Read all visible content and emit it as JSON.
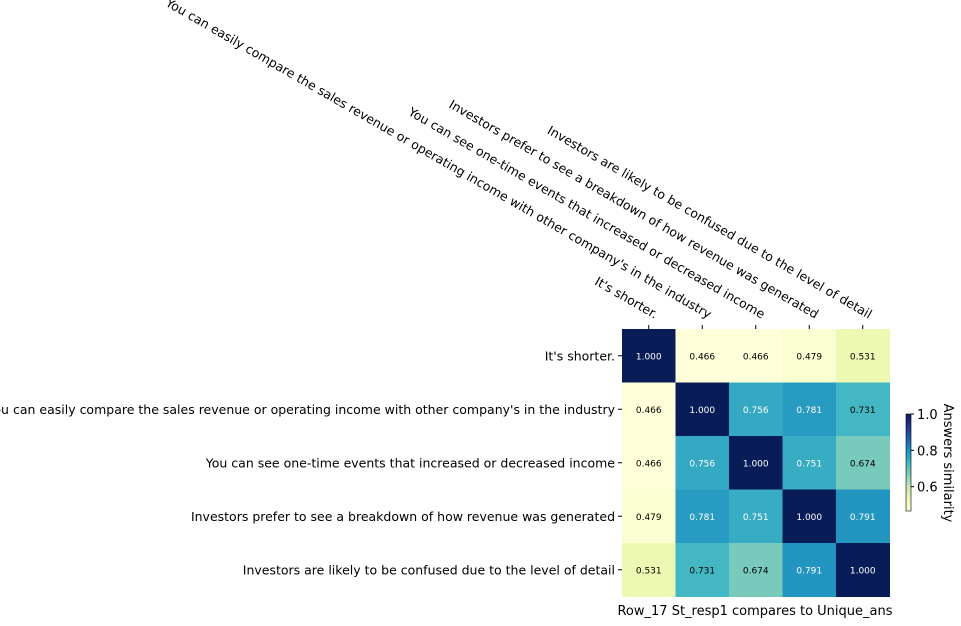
{
  "chart_data": {
    "type": "heatmap",
    "title": "",
    "xlabel": "Row_17 St_resp1 compares to Unique_ans",
    "ylabel": "",
    "labels": [
      "It's shorter.",
      "You can easily compare the sales revenue or operating income with other company's in the industry",
      "You can see one-time events that increased or decreased income",
      "Investors prefer to see a breakdown of how revenue was generated",
      "Investors are likely to be confused due to the level of detail"
    ],
    "values": [
      [
        1.0,
        0.466,
        0.466,
        0.479,
        0.531
      ],
      [
        0.466,
        1.0,
        0.756,
        0.781,
        0.731
      ],
      [
        0.466,
        0.756,
        1.0,
        0.751,
        0.674
      ],
      [
        0.479,
        0.781,
        0.751,
        1.0,
        0.791
      ],
      [
        0.531,
        0.731,
        0.674,
        0.791,
        1.0
      ]
    ],
    "colorbar": {
      "label": "Answers similarity",
      "ticks": [
        "0.6",
        "0.8",
        "1.0"
      ],
      "tick_values": [
        0.6,
        0.8,
        1.0
      ],
      "range": [
        0.466,
        1.0
      ],
      "colormap": "YlGnBu"
    }
  }
}
